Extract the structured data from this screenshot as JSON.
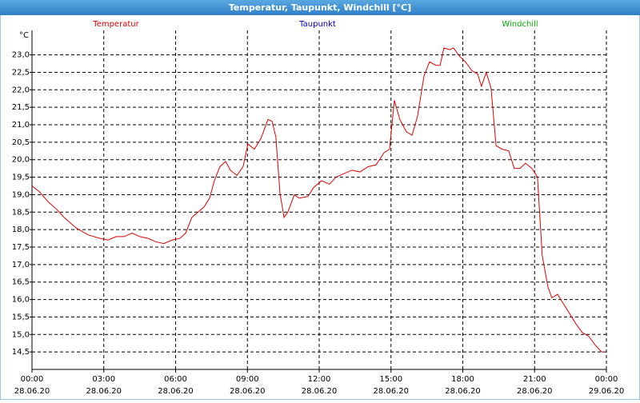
{
  "chart_data": {
    "type": "line",
    "title": "Temperatur, Taupunkt, Windchill [°C]",
    "y_unit": "°C",
    "x": [
      0,
      0.33,
      0.67,
      1.0,
      1.34,
      1.84,
      2.34,
      2.84,
      3.18,
      3.51,
      3.84,
      4.18,
      4.51,
      4.85,
      5.18,
      5.51,
      5.85,
      6.18,
      6.42,
      6.68,
      7.02,
      7.19,
      7.42,
      7.62,
      7.85,
      8.09,
      8.29,
      8.56,
      8.82,
      9.02,
      9.29,
      9.56,
      9.86,
      10.03,
      10.19,
      10.36,
      10.53,
      10.69,
      10.96,
      11.16,
      11.53,
      11.76,
      12.1,
      12.43,
      12.7,
      13.03,
      13.37,
      13.7,
      14.04,
      14.37,
      14.71,
      14.94,
      15.14,
      15.37,
      15.64,
      15.88,
      16.11,
      16.38,
      16.61,
      16.88,
      17.05,
      17.21,
      17.45,
      17.61,
      17.88,
      18.11,
      18.38,
      18.62,
      18.78,
      18.98,
      19.18,
      19.39,
      19.65,
      19.92,
      20.15,
      20.39,
      20.62,
      20.89,
      21.12,
      21.32,
      21.56,
      21.72,
      21.96,
      22.23,
      22.46,
      22.73,
      23.0,
      23.26,
      23.53,
      23.8,
      23.9
    ],
    "series": [
      {
        "name": "Temperatur",
        "color": "#e00000",
        "values": [
          19.25,
          19.07,
          18.8,
          18.6,
          18.35,
          18.05,
          17.85,
          17.75,
          17.7,
          17.8,
          17.8,
          17.9,
          17.8,
          17.75,
          17.65,
          17.6,
          17.7,
          17.75,
          17.9,
          18.35,
          18.55,
          18.65,
          18.9,
          19.4,
          19.8,
          19.95,
          19.7,
          19.55,
          19.8,
          20.45,
          20.3,
          20.6,
          21.15,
          21.1,
          20.65,
          19.05,
          18.35,
          18.5,
          19.0,
          18.9,
          18.95,
          19.2,
          19.4,
          19.3,
          19.5,
          19.6,
          19.7,
          19.65,
          19.8,
          19.85,
          20.2,
          20.3,
          21.7,
          21.15,
          20.8,
          20.7,
          21.25,
          22.4,
          22.8,
          22.7,
          22.7,
          23.2,
          23.15,
          23.2,
          22.95,
          22.8,
          22.55,
          22.45,
          22.1,
          22.5,
          22.05,
          20.4,
          20.3,
          20.25,
          19.75,
          19.75,
          19.9,
          19.75,
          19.5,
          17.25,
          16.35,
          16.05,
          16.15,
          15.85,
          15.6,
          15.3,
          15.05,
          14.95,
          14.7,
          14.5,
          14.5
        ]
      }
    ],
    "legend_only": [
      {
        "name": "Taupunkt",
        "color": "#0000c0"
      },
      {
        "name": "Windchill",
        "color": "#00b000"
      }
    ],
    "xlim": [
      0,
      24
    ],
    "xticks": [
      {
        "value": 0,
        "label": "00:00"
      },
      {
        "value": 3,
        "label": "03:00"
      },
      {
        "value": 6,
        "label": "06:00"
      },
      {
        "value": 9,
        "label": "09:00"
      },
      {
        "value": 12,
        "label": "12:00"
      },
      {
        "value": 15,
        "label": "15:00"
      },
      {
        "value": 18,
        "label": "18:00"
      },
      {
        "value": 21,
        "label": "21:00"
      },
      {
        "value": 24,
        "label": "00:00"
      }
    ],
    "xtick_dates": [
      "28.06.20",
      "28.06.20",
      "28.06.20",
      "28.06.20",
      "28.06.20",
      "28.06.20",
      "28.06.20",
      "28.06.20",
      "29.06.20"
    ],
    "ylim": [
      14.0,
      23.7
    ],
    "yticks": [
      {
        "value": 14.5,
        "label": "14,5"
      },
      {
        "value": 15,
        "label": "15,0"
      },
      {
        "value": 15.5,
        "label": "15,5"
      },
      {
        "value": 16,
        "label": "16,0"
      },
      {
        "value": 16.5,
        "label": "16,5"
      },
      {
        "value": 17,
        "label": "17,0"
      },
      {
        "value": 17.5,
        "label": "17,5"
      },
      {
        "value": 18,
        "label": "18,0"
      },
      {
        "value": 18.5,
        "label": "18,5"
      },
      {
        "value": 19,
        "label": "19,0"
      },
      {
        "value": 19.5,
        "label": "19,5"
      },
      {
        "value": 20,
        "label": "20,0"
      },
      {
        "value": 20.5,
        "label": "20,5"
      },
      {
        "value": 21,
        "label": "21,0"
      },
      {
        "value": 21.5,
        "label": "21,5"
      },
      {
        "value": 22,
        "label": "22,0"
      },
      {
        "value": 22.5,
        "label": "22,5"
      },
      {
        "value": 23,
        "label": "23,0"
      }
    ],
    "grid": true
  }
}
